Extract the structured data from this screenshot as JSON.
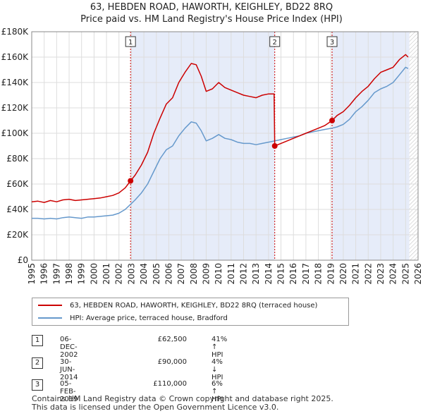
{
  "title_line1": "63, HEBDEN ROAD, HAWORTH, KEIGHLEY, BD22 8RQ",
  "title_line2": "Price paid vs. HM Land Registry's House Price Index (HPI)",
  "legend": {
    "property_label": "63, HEBDEN ROAD, HAWORTH, KEIGHLEY, BD22 8RQ (terraced house)",
    "hpi_label": "HPI: Average price, terraced house, Bradford"
  },
  "transactions": [
    {
      "num": "1",
      "date": "06-DEC-2002",
      "price": "£62,500",
      "hpi": "41% ↑ HPI"
    },
    {
      "num": "2",
      "date": "30-JUN-2014",
      "price": "£90,000",
      "hpi": "4% ↓ HPI"
    },
    {
      "num": "3",
      "date": "05-FEB-2019",
      "price": "£110,000",
      "hpi": "6% ↑ HPI"
    }
  ],
  "footer_line1": "Contains HM Land Registry data © Crown copyright and database right 2025.",
  "footer_line2": "This data is licensed under the Open Government Licence v3.0.",
  "chart_data": {
    "type": "line",
    "xlabel": "",
    "ylabel": "",
    "xlim": [
      1995,
      2026
    ],
    "ylim": [
      0,
      180000
    ],
    "x_ticks": [
      "1995",
      "1996",
      "1997",
      "1998",
      "1999",
      "2000",
      "2001",
      "2002",
      "2003",
      "2004",
      "2005",
      "2006",
      "2007",
      "2008",
      "2009",
      "2010",
      "2011",
      "2012",
      "2013",
      "2014",
      "2015",
      "2016",
      "2017",
      "2018",
      "2019",
      "2020",
      "2021",
      "2022",
      "2023",
      "2024",
      "2025",
      "2026"
    ],
    "y_ticks": [
      {
        "value": 0,
        "label": "£0"
      },
      {
        "value": 20000,
        "label": "£20K"
      },
      {
        "value": 40000,
        "label": "£40K"
      },
      {
        "value": 60000,
        "label": "£60K"
      },
      {
        "value": 80000,
        "label": "£80K"
      },
      {
        "value": 100000,
        "label": "£100K"
      },
      {
        "value": 120000,
        "label": "£120K"
      },
      {
        "value": 140000,
        "label": "£140K"
      },
      {
        "value": 160000,
        "label": "£160K"
      },
      {
        "value": 180000,
        "label": "£180K"
      }
    ],
    "shaded_ranges": [
      [
        2002.93,
        2014.5
      ],
      [
        2019.1,
        2025.3
      ]
    ],
    "hatched_range": [
      2025.3,
      2026
    ],
    "markers": [
      {
        "label": "1",
        "x": 2002.93,
        "y": 62500
      },
      {
        "label": "2",
        "x": 2014.5,
        "y": 90000
      },
      {
        "label": "3",
        "x": 2019.1,
        "y": 110000
      }
    ],
    "series": [
      {
        "name": "63, HEBDEN ROAD, HAWORTH, KEIGHLEY, BD22 8RQ (terraced house)",
        "color": "#cc0000",
        "points": [
          [
            1995,
            46000
          ],
          [
            1995.5,
            46500
          ],
          [
            1996,
            45500
          ],
          [
            1996.5,
            47000
          ],
          [
            1997,
            46000
          ],
          [
            1997.5,
            47500
          ],
          [
            1998,
            48000
          ],
          [
            1998.5,
            47000
          ],
          [
            1999,
            47500
          ],
          [
            1999.5,
            48000
          ],
          [
            2000,
            48500
          ],
          [
            2000.5,
            49000
          ],
          [
            2001,
            50000
          ],
          [
            2001.5,
            51000
          ],
          [
            2002,
            53000
          ],
          [
            2002.5,
            57000
          ],
          [
            2002.93,
            62500
          ],
          [
            2003.3,
            67000
          ],
          [
            2003.8,
            75000
          ],
          [
            2004.3,
            85000
          ],
          [
            2004.8,
            100000
          ],
          [
            2005.3,
            112000
          ],
          [
            2005.8,
            123000
          ],
          [
            2006.3,
            128000
          ],
          [
            2006.8,
            140000
          ],
          [
            2007.3,
            148000
          ],
          [
            2007.8,
            155000
          ],
          [
            2008.2,
            154000
          ],
          [
            2008.6,
            145000
          ],
          [
            2009,
            133000
          ],
          [
            2009.5,
            135000
          ],
          [
            2010,
            140000
          ],
          [
            2010.5,
            136000
          ],
          [
            2011,
            134000
          ],
          [
            2011.5,
            132000
          ],
          [
            2012,
            130000
          ],
          [
            2012.5,
            129000
          ],
          [
            2013,
            128000
          ],
          [
            2013.5,
            130000
          ],
          [
            2014,
            131000
          ],
          [
            2014.45,
            131000
          ],
          [
            2014.5,
            90000
          ],
          [
            2015,
            92000
          ],
          [
            2015.5,
            94000
          ],
          [
            2016,
            96000
          ],
          [
            2016.5,
            98000
          ],
          [
            2017,
            100000
          ],
          [
            2017.5,
            102000
          ],
          [
            2018,
            104000
          ],
          [
            2018.5,
            106000
          ],
          [
            2019.1,
            110000
          ],
          [
            2019.5,
            114000
          ],
          [
            2020,
            117000
          ],
          [
            2020.5,
            122000
          ],
          [
            2021,
            128000
          ],
          [
            2021.5,
            133000
          ],
          [
            2022,
            137000
          ],
          [
            2022.5,
            143000
          ],
          [
            2023,
            148000
          ],
          [
            2023.5,
            150000
          ],
          [
            2024,
            152000
          ],
          [
            2024.5,
            158000
          ],
          [
            2025,
            162000
          ],
          [
            2025.2,
            160000
          ]
        ]
      },
      {
        "name": "HPI: Average price, terraced house, Bradford",
        "color": "#6699cc",
        "points": [
          [
            1995,
            33000
          ],
          [
            1995.5,
            33000
          ],
          [
            1996,
            32500
          ],
          [
            1996.5,
            33000
          ],
          [
            1997,
            32500
          ],
          [
            1997.5,
            33500
          ],
          [
            1998,
            34000
          ],
          [
            1998.5,
            33500
          ],
          [
            1999,
            33000
          ],
          [
            1999.5,
            34000
          ],
          [
            2000,
            34000
          ],
          [
            2000.5,
            34500
          ],
          [
            2001,
            35000
          ],
          [
            2001.5,
            35500
          ],
          [
            2002,
            37000
          ],
          [
            2002.5,
            40000
          ],
          [
            2002.93,
            44000
          ],
          [
            2003.3,
            47500
          ],
          [
            2003.8,
            53000
          ],
          [
            2004.3,
            60000
          ],
          [
            2004.8,
            70000
          ],
          [
            2005.3,
            80000
          ],
          [
            2005.8,
            87000
          ],
          [
            2006.3,
            90000
          ],
          [
            2006.8,
            98000
          ],
          [
            2007.3,
            104000
          ],
          [
            2007.8,
            109000
          ],
          [
            2008.2,
            108000
          ],
          [
            2008.6,
            102000
          ],
          [
            2009,
            94000
          ],
          [
            2009.5,
            96000
          ],
          [
            2010,
            99000
          ],
          [
            2010.5,
            96000
          ],
          [
            2011,
            95000
          ],
          [
            2011.5,
            93000
          ],
          [
            2012,
            92000
          ],
          [
            2012.5,
            92000
          ],
          [
            2013,
            91000
          ],
          [
            2013.5,
            92000
          ],
          [
            2014,
            93000
          ],
          [
            2014.5,
            94000
          ],
          [
            2015,
            95000
          ],
          [
            2015.5,
            96000
          ],
          [
            2016,
            97000
          ],
          [
            2016.5,
            98000
          ],
          [
            2017,
            100000
          ],
          [
            2017.5,
            101000
          ],
          [
            2018,
            102000
          ],
          [
            2018.5,
            103000
          ],
          [
            2019.1,
            104000
          ],
          [
            2019.5,
            105000
          ],
          [
            2020,
            107000
          ],
          [
            2020.5,
            111000
          ],
          [
            2021,
            117000
          ],
          [
            2021.5,
            121000
          ],
          [
            2022,
            126000
          ],
          [
            2022.5,
            132000
          ],
          [
            2023,
            135000
          ],
          [
            2023.5,
            137000
          ],
          [
            2024,
            140000
          ],
          [
            2024.5,
            146000
          ],
          [
            2025,
            152000
          ],
          [
            2025.2,
            151000
          ]
        ]
      }
    ]
  }
}
